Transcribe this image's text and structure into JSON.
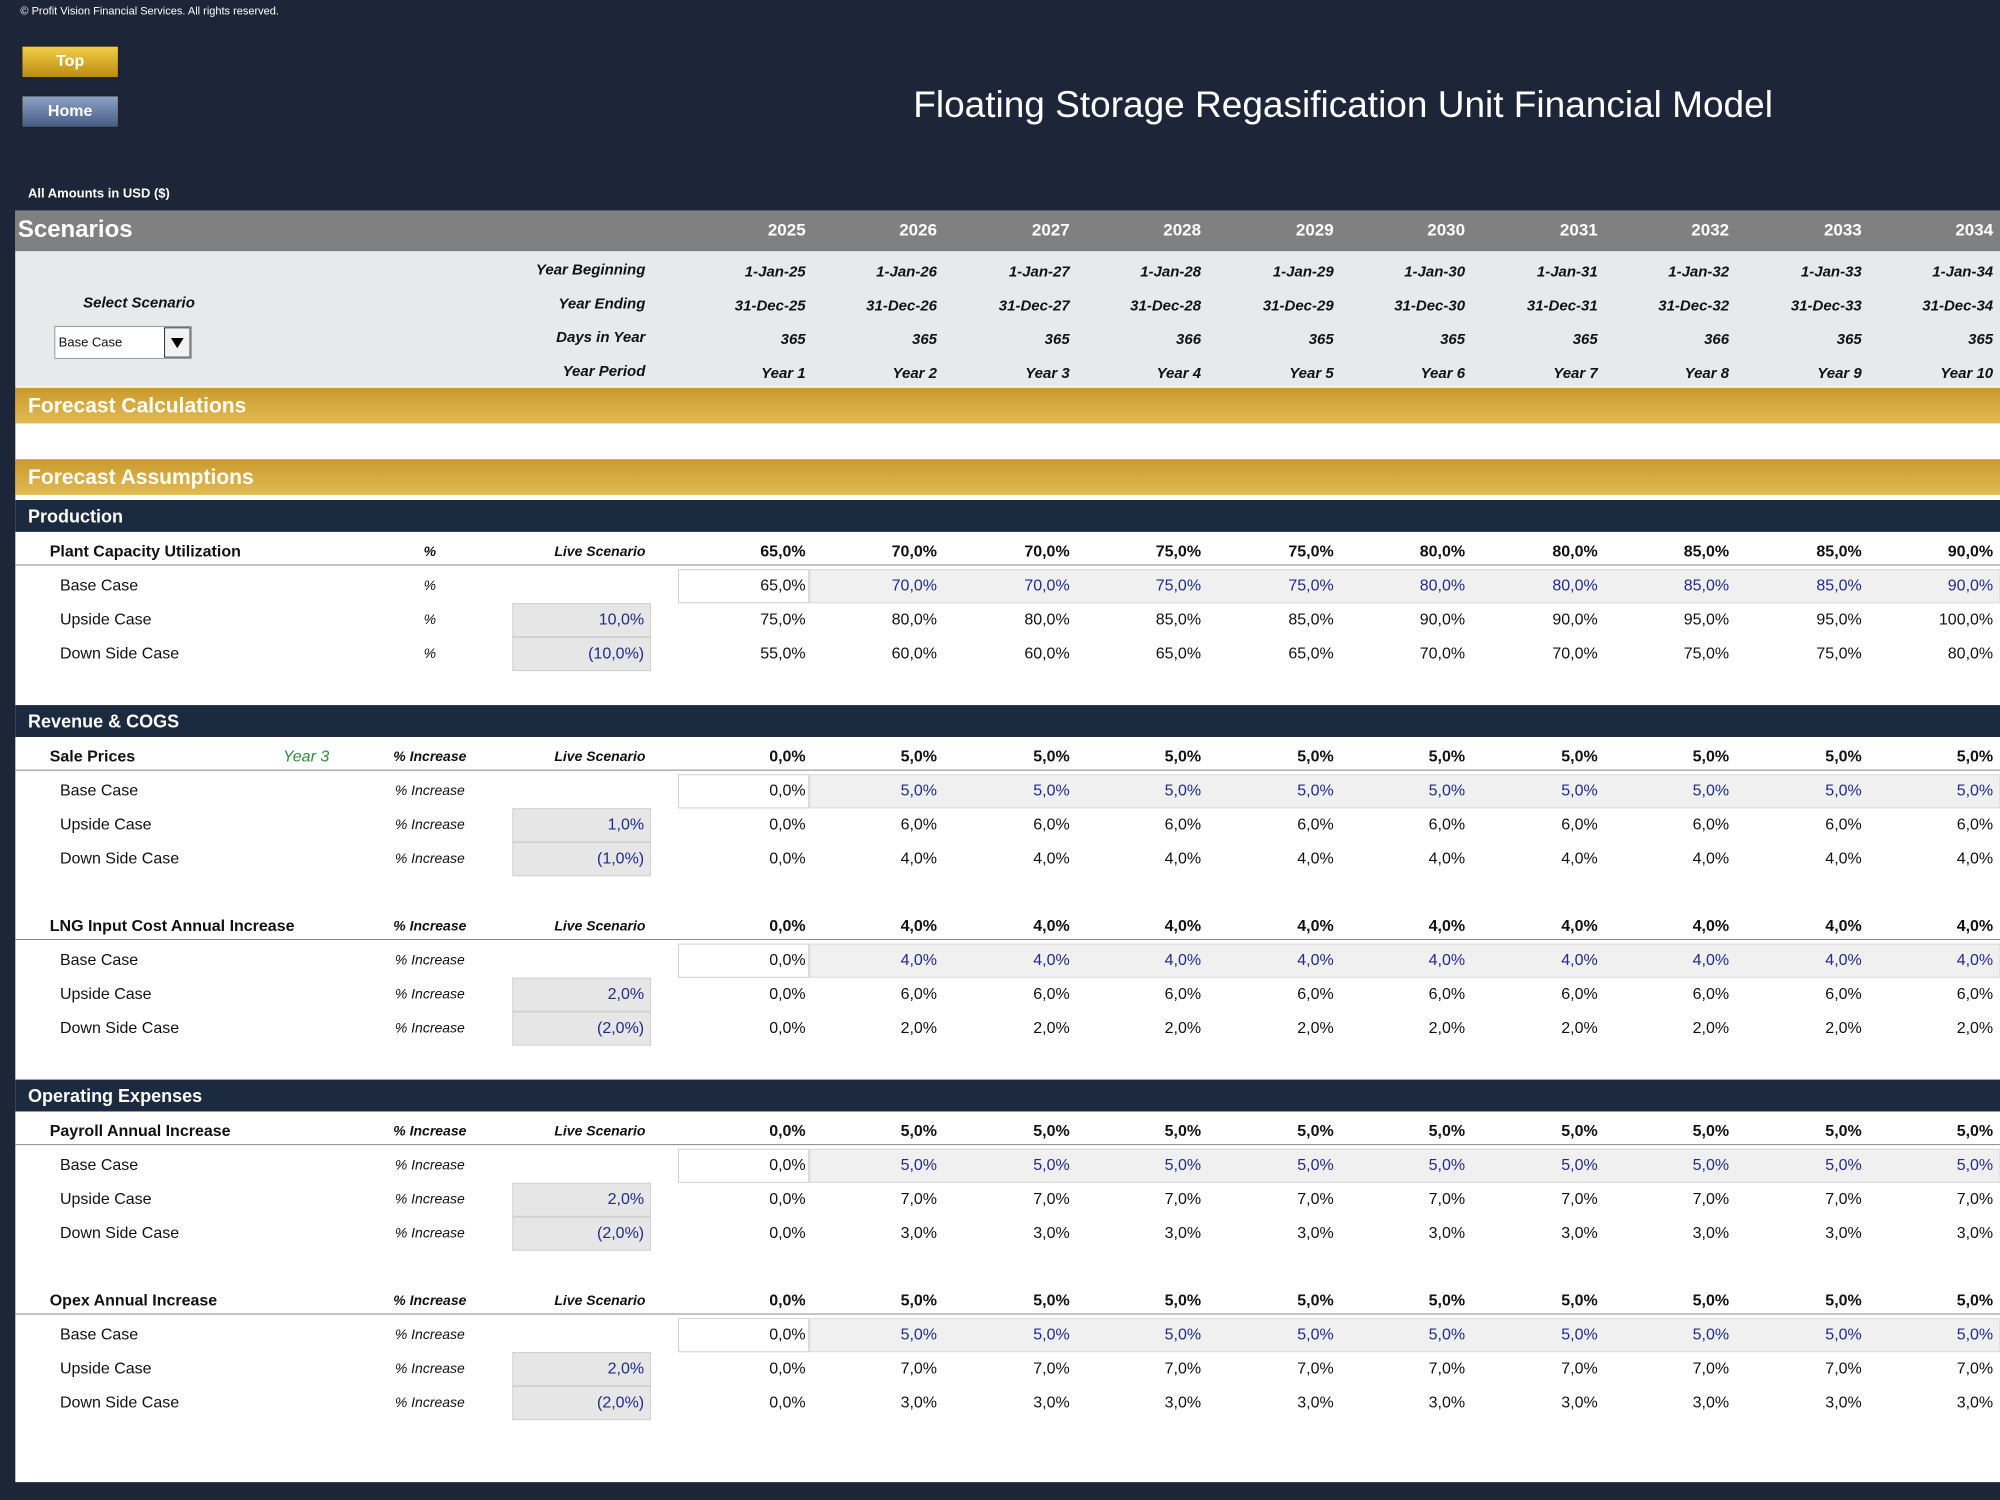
{
  "copyright": "© Profit Vision Financial Services. All rights reserved.",
  "buttons": [
    "Top",
    "Home"
  ],
  "title": "Floating Storage Regasification Unit Financial Model",
  "amounts_note": "All Amounts in  USD ($)",
  "scenarios": {
    "label": "Scenarios",
    "years": [
      "2025",
      "2026",
      "2027",
      "2028",
      "2029",
      "2030",
      "2031",
      "2032",
      "2033",
      "2034"
    ],
    "select_label": "Select Scenario",
    "selected": "Base Case",
    "timeline": [
      {
        "label": "Year Beginning",
        "values": [
          "1-Jan-25",
          "1-Jan-26",
          "1-Jan-27",
          "1-Jan-28",
          "1-Jan-29",
          "1-Jan-30",
          "1-Jan-31",
          "1-Jan-32",
          "1-Jan-33",
          "1-Jan-34"
        ]
      },
      {
        "label": "Year Ending",
        "values": [
          "31-Dec-25",
          "31-Dec-26",
          "31-Dec-27",
          "31-Dec-28",
          "31-Dec-29",
          "31-Dec-30",
          "31-Dec-31",
          "31-Dec-32",
          "31-Dec-33",
          "31-Dec-34"
        ]
      },
      {
        "label": "Days in Year",
        "values": [
          "365",
          "365",
          "365",
          "366",
          "365",
          "365",
          "365",
          "366",
          "365",
          "365"
        ]
      },
      {
        "label": "Year Period",
        "values": [
          "Year 1",
          "Year 2",
          "Year 3",
          "Year 4",
          "Year 5",
          "Year 6",
          "Year 7",
          "Year 8",
          "Year 9",
          "Year 10"
        ]
      }
    ]
  },
  "sections": [
    "Forecast Calculations",
    "Forecast Assumptions"
  ],
  "groups": [
    {
      "title": "Production",
      "items": [
        {
          "name": "Plant Capacity Utilization",
          "unit": "%",
          "live_label": "Live Scenario",
          "live": [
            "65,0%",
            "70,0%",
            "70,0%",
            "75,0%",
            "75,0%",
            "80,0%",
            "80,0%",
            "85,0%",
            "85,0%",
            "90,0%"
          ],
          "cases": [
            {
              "name": "Base Case",
              "unit": "%",
              "values": [
                "65,0%",
                "70,0%",
                "70,0%",
                "75,0%",
                "75,0%",
                "80,0%",
                "80,0%",
                "85,0%",
                "85,0%",
                "90,0%"
              ]
            },
            {
              "name": "Upside Case",
              "unit": "%",
              "adj": "10,0%",
              "values": [
                "75,0%",
                "80,0%",
                "80,0%",
                "85,0%",
                "85,0%",
                "90,0%",
                "90,0%",
                "95,0%",
                "95,0%",
                "100,0%"
              ]
            },
            {
              "name": "Down Side Case",
              "unit": "%",
              "adj": "(10,0%)",
              "values": [
                "55,0%",
                "60,0%",
                "60,0%",
                "65,0%",
                "65,0%",
                "70,0%",
                "70,0%",
                "75,0%",
                "75,0%",
                "80,0%"
              ]
            }
          ]
        }
      ]
    },
    {
      "title": "Revenue & COGS",
      "items": [
        {
          "name": "Sale Prices",
          "tag": "Year 3",
          "unit": "% Increase",
          "live_label": "Live Scenario",
          "live": [
            "0,0%",
            "5,0%",
            "5,0%",
            "5,0%",
            "5,0%",
            "5,0%",
            "5,0%",
            "5,0%",
            "5,0%",
            "5,0%"
          ],
          "cases": [
            {
              "name": "Base Case",
              "unit": "% Increase",
              "values": [
                "0,0%",
                "5,0%",
                "5,0%",
                "5,0%",
                "5,0%",
                "5,0%",
                "5,0%",
                "5,0%",
                "5,0%",
                "5,0%"
              ]
            },
            {
              "name": "Upside Case",
              "unit": "% Increase",
              "adj": "1,0%",
              "values": [
                "0,0%",
                "6,0%",
                "6,0%",
                "6,0%",
                "6,0%",
                "6,0%",
                "6,0%",
                "6,0%",
                "6,0%",
                "6,0%"
              ]
            },
            {
              "name": "Down Side Case",
              "unit": "% Increase",
              "adj": "(1,0%)",
              "values": [
                "0,0%",
                "4,0%",
                "4,0%",
                "4,0%",
                "4,0%",
                "4,0%",
                "4,0%",
                "4,0%",
                "4,0%",
                "4,0%"
              ]
            }
          ]
        },
        {
          "name": "LNG Input Cost Annual Increase",
          "unit": "% Increase",
          "live_label": "Live Scenario",
          "live": [
            "0,0%",
            "4,0%",
            "4,0%",
            "4,0%",
            "4,0%",
            "4,0%",
            "4,0%",
            "4,0%",
            "4,0%",
            "4,0%"
          ],
          "cases": [
            {
              "name": "Base Case",
              "unit": "% Increase",
              "values": [
                "0,0%",
                "4,0%",
                "4,0%",
                "4,0%",
                "4,0%",
                "4,0%",
                "4,0%",
                "4,0%",
                "4,0%",
                "4,0%"
              ]
            },
            {
              "name": "Upside Case",
              "unit": "% Increase",
              "adj": "2,0%",
              "values": [
                "0,0%",
                "6,0%",
                "6,0%",
                "6,0%",
                "6,0%",
                "6,0%",
                "6,0%",
                "6,0%",
                "6,0%",
                "6,0%"
              ]
            },
            {
              "name": "Down Side Case",
              "unit": "% Increase",
              "adj": "(2,0%)",
              "values": [
                "0,0%",
                "2,0%",
                "2,0%",
                "2,0%",
                "2,0%",
                "2,0%",
                "2,0%",
                "2,0%",
                "2,0%",
                "2,0%"
              ]
            }
          ]
        }
      ]
    },
    {
      "title": "Operating Expenses",
      "items": [
        {
          "name": "Payroll Annual Increase",
          "unit": "% Increase",
          "live_label": "Live Scenario",
          "live": [
            "0,0%",
            "5,0%",
            "5,0%",
            "5,0%",
            "5,0%",
            "5,0%",
            "5,0%",
            "5,0%",
            "5,0%",
            "5,0%"
          ],
          "cases": [
            {
              "name": "Base Case",
              "unit": "% Increase",
              "values": [
                "0,0%",
                "5,0%",
                "5,0%",
                "5,0%",
                "5,0%",
                "5,0%",
                "5,0%",
                "5,0%",
                "5,0%",
                "5,0%"
              ]
            },
            {
              "name": "Upside Case",
              "unit": "% Increase",
              "adj": "2,0%",
              "values": [
                "0,0%",
                "7,0%",
                "7,0%",
                "7,0%",
                "7,0%",
                "7,0%",
                "7,0%",
                "7,0%",
                "7,0%",
                "7,0%"
              ]
            },
            {
              "name": "Down Side Case",
              "unit": "% Increase",
              "adj": "(2,0%)",
              "values": [
                "0,0%",
                "3,0%",
                "3,0%",
                "3,0%",
                "3,0%",
                "3,0%",
                "3,0%",
                "3,0%",
                "3,0%",
                "3,0%"
              ]
            }
          ]
        },
        {
          "name": "Opex Annual Increase",
          "unit": "% Increase",
          "live_label": "Live Scenario",
          "live": [
            "0,0%",
            "5,0%",
            "5,0%",
            "5,0%",
            "5,0%",
            "5,0%",
            "5,0%",
            "5,0%",
            "5,0%",
            "5,0%"
          ],
          "cases": [
            {
              "name": "Base Case",
              "unit": "% Increase",
              "values": [
                "0,0%",
                "5,0%",
                "5,0%",
                "5,0%",
                "5,0%",
                "5,0%",
                "5,0%",
                "5,0%",
                "5,0%",
                "5,0%"
              ]
            },
            {
              "name": "Upside Case",
              "unit": "% Increase",
              "adj": "2,0%",
              "values": [
                "0,0%",
                "7,0%",
                "7,0%",
                "7,0%",
                "7,0%",
                "7,0%",
                "7,0%",
                "7,0%",
                "7,0%",
                "7,0%"
              ]
            },
            {
              "name": "Down Side Case",
              "unit": "% Increase",
              "adj": "(2,0%)",
              "values": [
                "0,0%",
                "3,0%",
                "3,0%",
                "3,0%",
                "3,0%",
                "3,0%",
                "3,0%",
                "3,0%",
                "3,0%",
                "3,0%"
              ]
            }
          ]
        }
      ]
    }
  ]
}
